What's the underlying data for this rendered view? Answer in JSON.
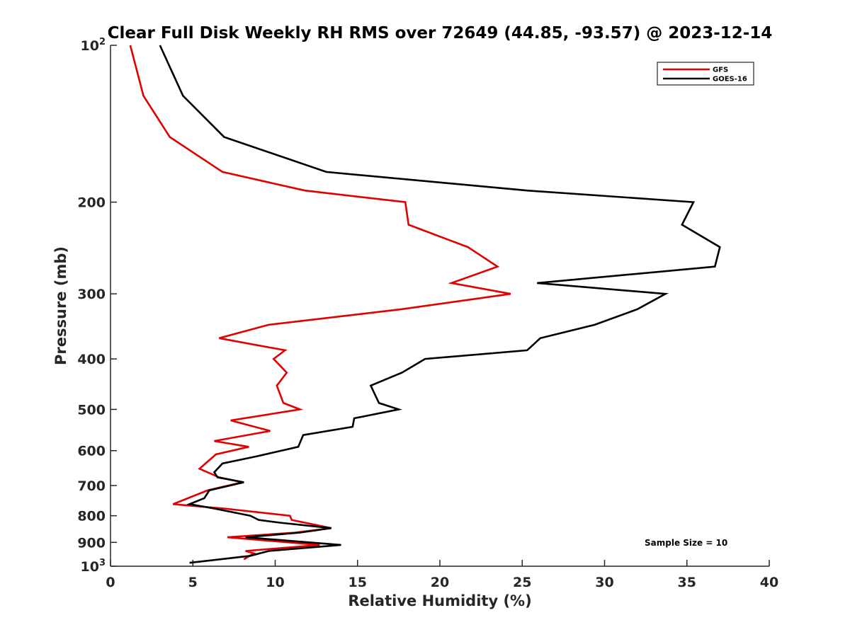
{
  "chart_data": {
    "type": "line",
    "title": "Clear Full Disk Weekly RH RMS over 72649 (44.85, -93.57) @ 2023-12-14",
    "xlabel": "Relative Humidity (%)",
    "ylabel": "Pressure (mb)",
    "xlim": [
      0,
      40
    ],
    "ylim": [
      100,
      1000
    ],
    "y_scale": "log",
    "y_reversed": true,
    "grid": false,
    "legend_position": "top-right",
    "x_ticks": [
      "0",
      "5",
      "10",
      "15",
      "20",
      "25",
      "30",
      "35",
      "40"
    ],
    "y_ticks": [
      {
        "value": 100,
        "label": "10",
        "exp": "2"
      },
      {
        "value": 200,
        "label": "200",
        "exp": ""
      },
      {
        "value": 300,
        "label": "300",
        "exp": ""
      },
      {
        "value": 400,
        "label": "400",
        "exp": ""
      },
      {
        "value": 500,
        "label": "500",
        "exp": ""
      },
      {
        "value": 600,
        "label": "600",
        "exp": ""
      },
      {
        "value": 700,
        "label": "700",
        "exp": ""
      },
      {
        "value": 800,
        "label": "800",
        "exp": ""
      },
      {
        "value": 900,
        "label": "900",
        "exp": ""
      },
      {
        "value": 1000,
        "label": "10",
        "exp": "3"
      }
    ],
    "series": [
      {
        "name": "GFS",
        "color": "#e00000",
        "points": [
          [
            1.2,
            100
          ],
          [
            2.0,
            125
          ],
          [
            3.6,
            150
          ],
          [
            6.8,
            175
          ],
          [
            11.8,
            190
          ],
          [
            17.9,
            200
          ],
          [
            18.1,
            221
          ],
          [
            21.7,
            244
          ],
          [
            23.5,
            266
          ],
          [
            20.7,
            286
          ],
          [
            24.3,
            300
          ],
          [
            17.7,
            321
          ],
          [
            9.6,
            344
          ],
          [
            6.6,
            365
          ],
          [
            10.6,
            385
          ],
          [
            9.9,
            400
          ],
          [
            10.7,
            425
          ],
          [
            10.1,
            450
          ],
          [
            10.5,
            486
          ],
          [
            11.5,
            500
          ],
          [
            7.3,
            525
          ],
          [
            9.7,
            550
          ],
          [
            6.3,
            575
          ],
          [
            8.4,
            590
          ],
          [
            6.4,
            610
          ],
          [
            5.4,
            650
          ],
          [
            6.6,
            675
          ],
          [
            8.0,
            690
          ],
          [
            5.9,
            715
          ],
          [
            3.8,
            760
          ],
          [
            6.9,
            775
          ],
          [
            10.9,
            800
          ],
          [
            11.0,
            815
          ],
          [
            13.4,
            845
          ],
          [
            11.2,
            862
          ],
          [
            7.1,
            880
          ],
          [
            12.7,
            910
          ],
          [
            8.2,
            935
          ],
          [
            8.7,
            945
          ],
          [
            8.1,
            970
          ]
        ]
      },
      {
        "name": "GOES-16",
        "color": "#000000",
        "points": [
          [
            3.0,
            100
          ],
          [
            4.4,
            125
          ],
          [
            6.9,
            150
          ],
          [
            13.1,
            175
          ],
          [
            25.3,
            190
          ],
          [
            35.4,
            200
          ],
          [
            34.7,
            221
          ],
          [
            37.0,
            244
          ],
          [
            36.7,
            266
          ],
          [
            25.9,
            286
          ],
          [
            33.7,
            300
          ],
          [
            32.0,
            321
          ],
          [
            29.4,
            344
          ],
          [
            26.1,
            365
          ],
          [
            25.3,
            385
          ],
          [
            19.1,
            400
          ],
          [
            17.7,
            425
          ],
          [
            15.8,
            450
          ],
          [
            16.3,
            486
          ],
          [
            17.5,
            500
          ],
          [
            14.8,
            520
          ],
          [
            14.7,
            540
          ],
          [
            11.7,
            560
          ],
          [
            11.4,
            590
          ],
          [
            8.9,
            615
          ],
          [
            6.8,
            635
          ],
          [
            6.3,
            660
          ],
          [
            6.5,
            675
          ],
          [
            8.1,
            690
          ],
          [
            6.0,
            715
          ],
          [
            5.7,
            740
          ],
          [
            4.8,
            760
          ],
          [
            6.3,
            775
          ],
          [
            8.5,
            800
          ],
          [
            9.0,
            815
          ],
          [
            10.3,
            825
          ],
          [
            13.4,
            845
          ],
          [
            11.5,
            862
          ],
          [
            8.2,
            880
          ],
          [
            14.0,
            910
          ],
          [
            9.6,
            935
          ],
          [
            8.5,
            955
          ],
          [
            4.8,
            985
          ]
        ]
      }
    ],
    "annotations": [
      "Sample Size = 10"
    ]
  }
}
